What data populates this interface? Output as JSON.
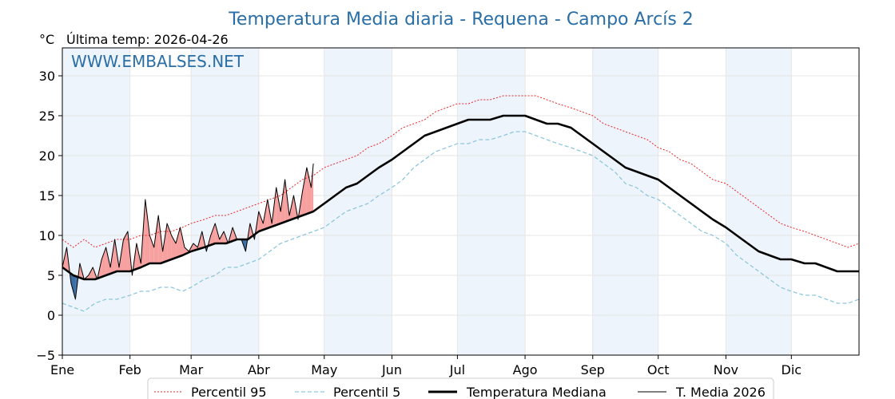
{
  "chart_data": {
    "type": "line",
    "title": "Temperatura Media diaria - Requena - Campo Arcís 2",
    "unit_label": "°C",
    "last_temp_label": "Última temp: 2026-04-26",
    "watermark": "WWW.EMBALSES.NET",
    "ylim": [
      -5,
      33.5
    ],
    "yticks": [
      -5,
      0,
      5,
      10,
      15,
      20,
      25,
      30
    ],
    "ytick_labels": [
      "−5",
      "0",
      "5",
      "10",
      "15",
      "20",
      "25",
      "30"
    ],
    "xlim": [
      0,
      365
    ],
    "x_unit": "day of year",
    "month_labels": [
      "Ene",
      "Feb",
      "Mar",
      "Abr",
      "May",
      "Jun",
      "Jul",
      "Ago",
      "Sep",
      "Oct",
      "Nov",
      "Dic"
    ],
    "month_start_days": [
      0,
      31,
      59,
      90,
      120,
      151,
      181,
      212,
      243,
      273,
      304,
      334
    ],
    "grid": true,
    "alternate_month_shading": true,
    "legend_position": "bottom",
    "colors": {
      "p95": "#e8262a",
      "p5": "#8ec7dd",
      "median": "#000000",
      "current": "#000000",
      "above_fill": "#f7a0a0",
      "below_fill": "#3a6ea5",
      "shade": "#eef4fb",
      "title": "#2a6ea6"
    },
    "series": [
      {
        "name": "Percentil 95",
        "style": "dotted",
        "x": [
          0,
          5,
          10,
          15,
          20,
          25,
          31,
          36,
          40,
          45,
          50,
          55,
          59,
          65,
          70,
          75,
          80,
          85,
          90,
          95,
          100,
          105,
          110,
          115,
          120,
          125,
          130,
          135,
          140,
          145,
          151,
          156,
          161,
          166,
          171,
          176,
          181,
          186,
          191,
          196,
          202,
          207,
          212,
          217,
          222,
          227,
          233,
          238,
          243,
          248,
          253,
          258,
          263,
          268,
          273,
          278,
          283,
          288,
          293,
          298,
          304,
          309,
          314,
          319,
          324,
          329,
          334,
          340,
          345,
          350,
          355,
          360,
          365
        ],
        "values": [
          9.5,
          8.5,
          9.5,
          8.5,
          9.0,
          9.5,
          9.5,
          10.0,
          10.0,
          10.5,
          10.5,
          11.0,
          11.5,
          12.0,
          12.5,
          12.5,
          13.0,
          13.5,
          14.0,
          14.5,
          15.0,
          16.0,
          17.0,
          17.5,
          18.5,
          19.0,
          19.5,
          20.0,
          21.0,
          21.5,
          22.5,
          23.5,
          24.0,
          24.5,
          25.5,
          26.0,
          26.5,
          26.5,
          27.0,
          27.0,
          27.5,
          27.5,
          27.5,
          27.5,
          27.0,
          26.5,
          26.0,
          25.5,
          25.0,
          24.0,
          23.5,
          23.0,
          22.5,
          22.0,
          21.0,
          20.5,
          19.5,
          19.0,
          18.0,
          17.0,
          16.5,
          15.5,
          14.5,
          13.5,
          12.5,
          11.5,
          11.0,
          10.5,
          10.0,
          9.5,
          9.0,
          8.5,
          9.0
        ]
      },
      {
        "name": "Percentil 5",
        "style": "dashed",
        "x": [
          0,
          5,
          10,
          15,
          20,
          25,
          31,
          36,
          40,
          45,
          50,
          55,
          59,
          65,
          70,
          75,
          80,
          85,
          90,
          95,
          100,
          105,
          110,
          115,
          120,
          125,
          130,
          135,
          140,
          145,
          151,
          156,
          161,
          166,
          171,
          176,
          181,
          186,
          191,
          196,
          202,
          207,
          212,
          217,
          222,
          227,
          233,
          238,
          243,
          248,
          253,
          258,
          263,
          268,
          273,
          278,
          283,
          288,
          293,
          298,
          304,
          309,
          314,
          319,
          324,
          329,
          334,
          340,
          345,
          350,
          355,
          360,
          365
        ],
        "values": [
          1.5,
          1.0,
          0.5,
          1.5,
          2.0,
          2.0,
          2.5,
          3.0,
          3.0,
          3.5,
          3.5,
          3.0,
          3.5,
          4.5,
          5.0,
          6.0,
          6.0,
          6.5,
          7.0,
          8.0,
          9.0,
          9.5,
          10.0,
          10.5,
          11.0,
          12.0,
          13.0,
          13.5,
          14.0,
          15.0,
          16.0,
          17.0,
          18.5,
          19.5,
          20.5,
          21.0,
          21.5,
          21.5,
          22.0,
          22.0,
          22.5,
          23.0,
          23.0,
          22.5,
          22.0,
          21.5,
          21.0,
          20.5,
          20.0,
          19.0,
          18.0,
          16.5,
          16.0,
          15.0,
          14.5,
          13.5,
          12.5,
          11.5,
          10.5,
          10.0,
          9.0,
          7.5,
          6.5,
          5.5,
          4.5,
          3.5,
          3.0,
          2.5,
          2.5,
          2.0,
          1.5,
          1.5,
          2.0
        ]
      },
      {
        "name": "Temperatura Mediana",
        "style": "solid-thick",
        "x": [
          0,
          5,
          10,
          15,
          20,
          25,
          31,
          36,
          40,
          45,
          50,
          55,
          59,
          65,
          70,
          75,
          80,
          85,
          90,
          95,
          100,
          105,
          110,
          115,
          120,
          125,
          130,
          135,
          140,
          145,
          151,
          156,
          161,
          166,
          171,
          176,
          181,
          186,
          191,
          196,
          202,
          207,
          212,
          217,
          222,
          227,
          233,
          238,
          243,
          248,
          253,
          258,
          263,
          268,
          273,
          278,
          283,
          288,
          293,
          298,
          304,
          309,
          314,
          319,
          324,
          329,
          334,
          340,
          345,
          350,
          355,
          360,
          365
        ],
        "values": [
          6.0,
          5.0,
          4.5,
          4.5,
          5.0,
          5.5,
          5.5,
          6.0,
          6.5,
          6.5,
          7.0,
          7.5,
          8.0,
          8.5,
          9.0,
          9.0,
          9.5,
          9.5,
          10.5,
          11.0,
          11.5,
          12.0,
          12.5,
          13.0,
          14.0,
          15.0,
          16.0,
          16.5,
          17.5,
          18.5,
          19.5,
          20.5,
          21.5,
          22.5,
          23.0,
          23.5,
          24.0,
          24.5,
          24.5,
          24.5,
          25.0,
          25.0,
          25.0,
          24.5,
          24.0,
          24.0,
          23.5,
          22.5,
          21.5,
          20.5,
          19.5,
          18.5,
          18.0,
          17.5,
          17.0,
          16.0,
          15.0,
          14.0,
          13.0,
          12.0,
          11.0,
          10.0,
          9.0,
          8.0,
          7.5,
          7.0,
          7.0,
          6.5,
          6.5,
          6.0,
          5.5,
          5.5,
          5.5
        ]
      },
      {
        "name": "T. Media 2026",
        "style": "solid-thin",
        "x": [
          0,
          2,
          4,
          6,
          8,
          10,
          12,
          14,
          16,
          18,
          20,
          22,
          24,
          26,
          28,
          30,
          32,
          34,
          36,
          38,
          40,
          42,
          44,
          46,
          48,
          50,
          52,
          54,
          56,
          58,
          60,
          62,
          64,
          66,
          68,
          70,
          72,
          74,
          76,
          78,
          80,
          82,
          84,
          86,
          88,
          90,
          92,
          94,
          96,
          98,
          100,
          102,
          104,
          106,
          108,
          110,
          112,
          114,
          115
        ],
        "values": [
          6.0,
          8.5,
          4.0,
          2.0,
          6.5,
          4.5,
          5.0,
          6.0,
          4.5,
          7.0,
          8.5,
          6.0,
          9.5,
          6.0,
          9.5,
          10.5,
          5.0,
          9.0,
          6.5,
          14.5,
          10.0,
          8.5,
          12.5,
          8.0,
          11.5,
          10.0,
          9.0,
          11.0,
          8.5,
          8.0,
          9.0,
          8.5,
          10.5,
          8.0,
          10.0,
          11.5,
          9.5,
          10.5,
          9.0,
          11.0,
          9.5,
          9.5,
          8.0,
          11.5,
          9.5,
          13.0,
          11.5,
          14.5,
          11.5,
          16.0,
          13.0,
          17.0,
          12.5,
          15.0,
          12.0,
          15.5,
          18.5,
          16.0,
          19.0
        ]
      }
    ]
  }
}
